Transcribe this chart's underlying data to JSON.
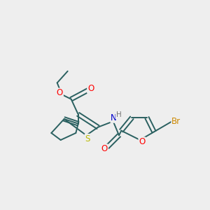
{
  "bg_color": "#eeeeee",
  "atom_colors": {
    "O": "#ff0000",
    "N": "#0000cc",
    "S": "#bbbb00",
    "Br": "#cc8800",
    "H": "#777777",
    "C": "#2a6060"
  },
  "bond_color": "#2a6060",
  "bond_lw": 1.4,
  "figsize": [
    3.0,
    3.0
  ],
  "dpi": 100
}
